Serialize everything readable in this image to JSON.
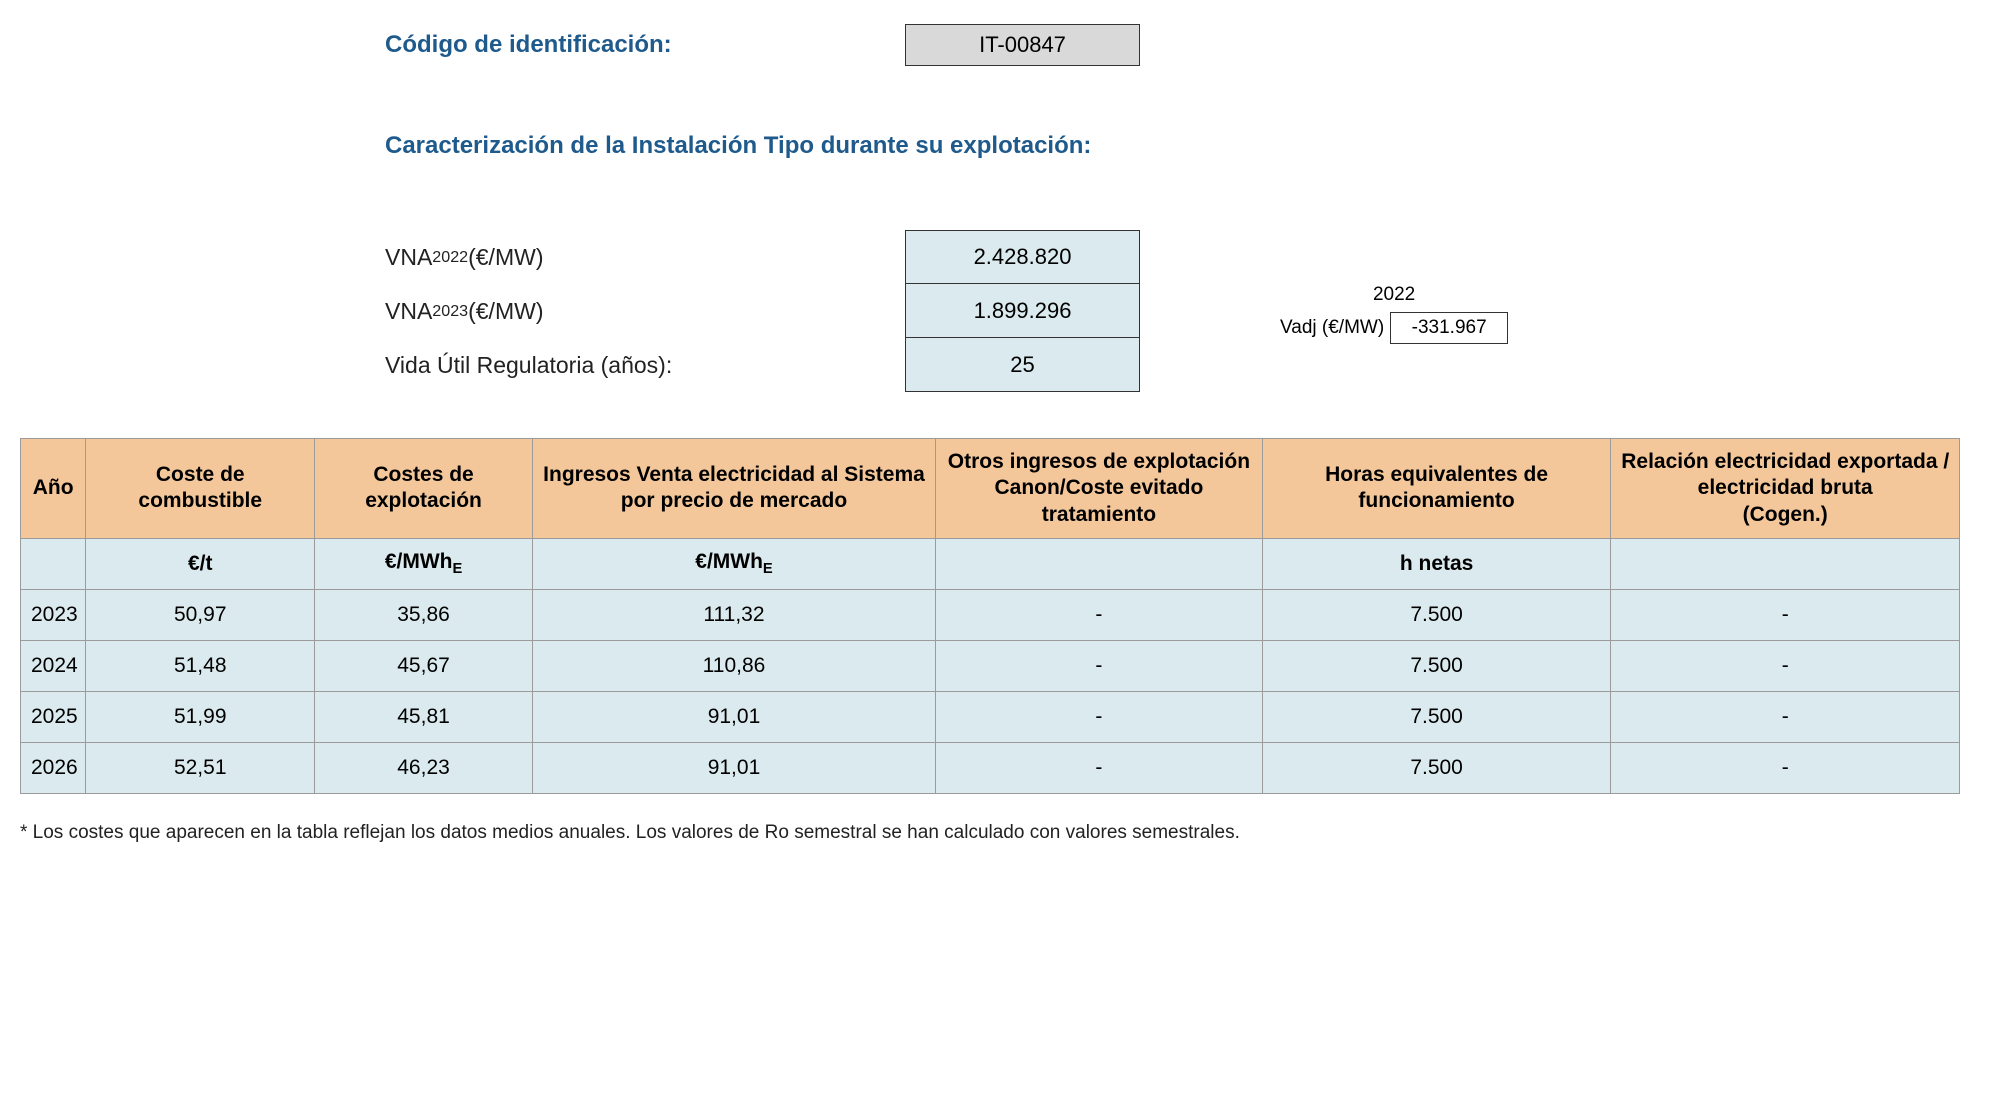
{
  "colors": {
    "heading_blue": "#1f5a8c",
    "value_box_blue": "#dbeaee",
    "value_box_gray": "#d9d9d9",
    "table_header_orange": "#f4c79a",
    "table_cell_blue": "#dbeaee",
    "border": "#9b9b9b",
    "text": "#000000",
    "background": "#ffffff"
  },
  "header": {
    "codigo_label": "Código de identificación:",
    "codigo_value": "IT-00847",
    "caracterizacion_title": "Caracterización de la Instalación Tipo durante su explotación:"
  },
  "params": {
    "vna_2022_label_html": "VNA<sub>2022</sub> (€/MW)",
    "vna_2022_value": "2.428.820",
    "vna_2023_label_html": "VNA<sub>2023</sub> (€/MW)",
    "vna_2023_value": "1.899.296",
    "vida_util_label": "Vida Útil Regulatoria (años):",
    "vida_util_value": "25",
    "vadj_year": "2022",
    "vadj_label": "Vadj (€/MW)",
    "vadj_value": "-331.967"
  },
  "table": {
    "columns": [
      "Año",
      "Coste de combustible",
      "Costes de explotación",
      "Ingresos Venta electricidad al Sistema por precio de mercado",
      "Otros ingresos de explotación Canon/Coste evitado tratamiento",
      "Horas equivalentes de funcionamiento",
      "Relación electricidad exportada / electricidad bruta\n(Cogen.)"
    ],
    "units_row_html": [
      "",
      "€/t",
      "€/MWh<sub>E</sub>",
      "€/MWh<sub>E</sub>",
      "",
      "h netas",
      ""
    ],
    "rows": [
      [
        "2023",
        "50,97",
        "35,86",
        "111,32",
        "-",
        "7.500",
        "-"
      ],
      [
        "2024",
        "51,48",
        "45,67",
        "110,86",
        "-",
        "7.500",
        "-"
      ],
      [
        "2025",
        "51,99",
        "45,81",
        "91,01",
        "-",
        "7.500",
        "-"
      ],
      [
        "2026",
        "52,51",
        "46,23",
        "91,01",
        "-",
        "7.500",
        "-"
      ]
    ],
    "column_css_classes": [
      "c-ano",
      "c-comb",
      "c-expl",
      "c-ing",
      "c-otros",
      "c-horas",
      "c-rel"
    ]
  },
  "footnote": "* Los costes que aparecen en la tabla reflejan los datos medios anuales. Los valores de Ro semestral se han calculado con valores semestrales."
}
